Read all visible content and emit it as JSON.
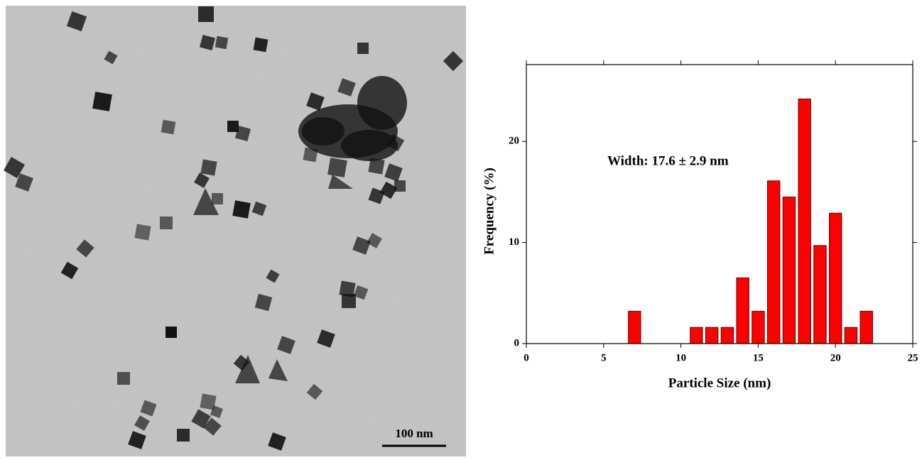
{
  "image": {
    "scale_bar": "100 nm"
  },
  "chart_data": {
    "type": "histogram",
    "xlabel": "Particle Size (nm)",
    "ylabel": "Frequency (%)",
    "annotation": "Width: 17.6 ± 2.9 nm",
    "bins": [
      6.5,
      7.5,
      8.5,
      9.5,
      10.5,
      11.5,
      12.5,
      13.5,
      14.5,
      15.5,
      16.5,
      17.5,
      18.5,
      19.5,
      20.5,
      21.5,
      22.5
    ],
    "values": [
      3.2,
      0,
      0,
      0,
      1.6,
      1.6,
      1.6,
      6.5,
      3.2,
      16.1,
      14.5,
      24.2,
      9.7,
      12.9,
      1.6,
      3.2
    ],
    "color": "#ff0000",
    "xlim": [
      0,
      25
    ],
    "xticks": [
      0,
      5,
      10,
      15,
      20,
      25
    ],
    "ylim": [
      0,
      27.6
    ],
    "yticks": [
      0,
      10,
      20
    ]
  }
}
